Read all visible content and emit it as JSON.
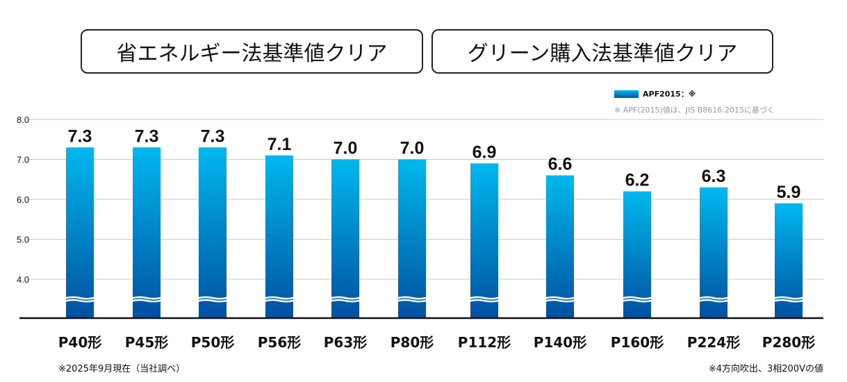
{
  "badges": [
    "省エネルギー法基準値クリア",
    "グリーン購入法基準値クリア"
  ],
  "legend": {
    "label": "APF2015：※",
    "color_top": "#00b8ee",
    "color_bottom": "#0055a8"
  },
  "note": "※ APF(2015)値は、JIS B8616:2015に基づく",
  "footnotes": {
    "left": "※2025年9月現在（当社調べ）",
    "right": "※4方向吹出、3相200Vの値"
  },
  "chart_data": {
    "type": "bar",
    "categories": [
      "P40形",
      "P45形",
      "P50形",
      "P56形",
      "P63形",
      "P80形",
      "P112形",
      "P140形",
      "P160形",
      "P224形",
      "P280形"
    ],
    "series": [
      {
        "name": "APF2015",
        "values": [
          7.3,
          7.3,
          7.3,
          7.1,
          7.0,
          7.0,
          6.9,
          6.6,
          6.2,
          6.3,
          5.9
        ]
      }
    ],
    "y_ticks": [
      "8.0",
      "7.0",
      "6.0",
      "5.0",
      "4.0"
    ],
    "ylim": [
      4.0,
      8.0
    ],
    "axis_break": true,
    "grid": true,
    "legend_position": "top-right"
  }
}
